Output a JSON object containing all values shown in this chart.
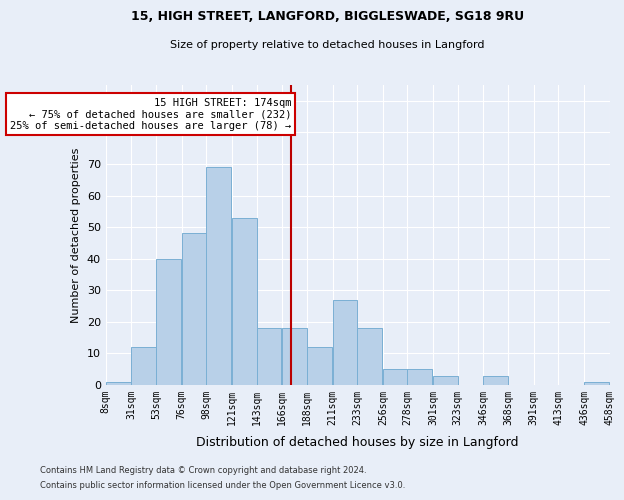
{
  "title1": "15, HIGH STREET, LANGFORD, BIGGLESWADE, SG18 9RU",
  "title2": "Size of property relative to detached houses in Langford",
  "xlabel": "Distribution of detached houses by size in Langford",
  "ylabel": "Number of detached properties",
  "footer1": "Contains HM Land Registry data © Crown copyright and database right 2024.",
  "footer2": "Contains public sector information licensed under the Open Government Licence v3.0.",
  "annotation_line1": "15 HIGH STREET: 174sqm",
  "annotation_line2": "← 75% of detached houses are smaller (232)",
  "annotation_line3": "25% of semi-detached houses are larger (78) →",
  "property_size": 174,
  "bar_color": "#b8d0e8",
  "bar_edge_color": "#7aafd4",
  "vline_color": "#bb0000",
  "background_color": "#e8eef8",
  "grid_color": "#ffffff",
  "bins_left": [
    8,
    31,
    53,
    76,
    98,
    121,
    143,
    166,
    188,
    211,
    233,
    256,
    278,
    301,
    323,
    346,
    368,
    391,
    413,
    436
  ],
  "bin_width": 23,
  "counts": [
    1,
    12,
    40,
    48,
    69,
    53,
    18,
    18,
    12,
    27,
    18,
    5,
    5,
    3,
    0,
    3,
    0,
    0,
    0,
    1
  ],
  "yticks": [
    0,
    10,
    20,
    30,
    40,
    50,
    60,
    70,
    80,
    90
  ],
  "ylim": [
    0,
    95
  ],
  "xtick_labels": [
    "8sqm",
    "31sqm",
    "53sqm",
    "76sqm",
    "98sqm",
    "121sqm",
    "143sqm",
    "166sqm",
    "188sqm",
    "211sqm",
    "233sqm",
    "256sqm",
    "278sqm",
    "301sqm",
    "323sqm",
    "346sqm",
    "368sqm",
    "391sqm",
    "413sqm",
    "436sqm",
    "458sqm"
  ]
}
